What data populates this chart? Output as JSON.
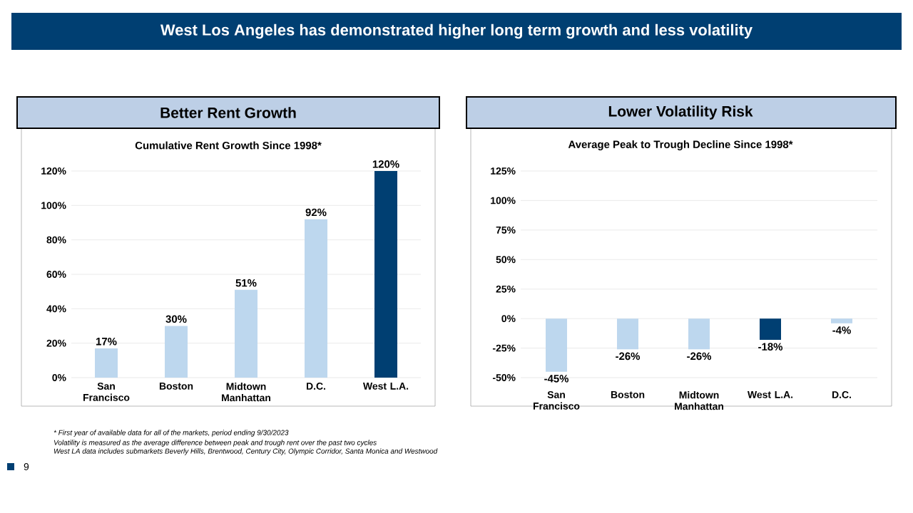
{
  "chart_data": [
    {
      "type": "bar",
      "title": "Better Rent Growth",
      "subtitle": "Cumulative Rent Growth Since 1998*",
      "categories": [
        "San Francisco",
        "Boston",
        "Midtown Manhattan",
        "D.C.",
        "West L.A."
      ],
      "values": [
        17,
        30,
        51,
        92,
        120
      ],
      "colors": [
        "#bdd7ee",
        "#bdd7ee",
        "#bdd7ee",
        "#bdd7ee",
        "#003f72"
      ],
      "value_labels": [
        "17%",
        "30%",
        "51%",
        "92%",
        "120%"
      ],
      "ylim": [
        0,
        120
      ],
      "yticks": [
        {
          "value": 0,
          "label": "0%"
        },
        {
          "value": 20,
          "label": "20%"
        },
        {
          "value": 40,
          "label": "40%"
        },
        {
          "value": 60,
          "label": "60%"
        },
        {
          "value": 80,
          "label": "80%"
        },
        {
          "value": 100,
          "label": "100%"
        },
        {
          "value": 120,
          "label": "120%"
        }
      ],
      "grid": "y",
      "annotations": [
        "West Los Angeles has demonstrated higher long term growth and less volatility",
        "* First year of available data for all of the markets, period ending 9/30/2023",
        "Volatility is measured as the average difference between peak and trough rent over the past two cycles",
        "West LA data includes submarkets Beverly Hills, Brentwood, Century City, Olympic Corridor, Santa Monica and Westwood",
        "9"
      ]
    },
    {
      "type": "bar",
      "title": "Lower Volatility Risk",
      "subtitle": "Average Peak to Trough Decline Since 1998*",
      "categories": [
        "San Francisco",
        "Boston",
        "Midtown Manhattan",
        "West L.A.",
        "D.C."
      ],
      "values": [
        -45,
        -26,
        -26,
        -18,
        -4
      ],
      "colors": [
        "#bdd7ee",
        "#bdd7ee",
        "#bdd7ee",
        "#003f72",
        "#bdd7ee"
      ],
      "value_labels": [
        "-45%",
        "-26%",
        "-26%",
        "-18%",
        "-4%"
      ],
      "ylim": [
        -50,
        125
      ],
      "yticks": [
        {
          "value": -50,
          "label": "-50%"
        },
        {
          "value": -25,
          "label": "-25%"
        },
        {
          "value": 0,
          "label": "0%"
        },
        {
          "value": 25,
          "label": "25%"
        },
        {
          "value": 50,
          "label": "50%"
        },
        {
          "value": 75,
          "label": "75%"
        },
        {
          "value": 100,
          "label": "100%"
        },
        {
          "value": 125,
          "label": "125%"
        }
      ],
      "grid": "y"
    }
  ]
}
